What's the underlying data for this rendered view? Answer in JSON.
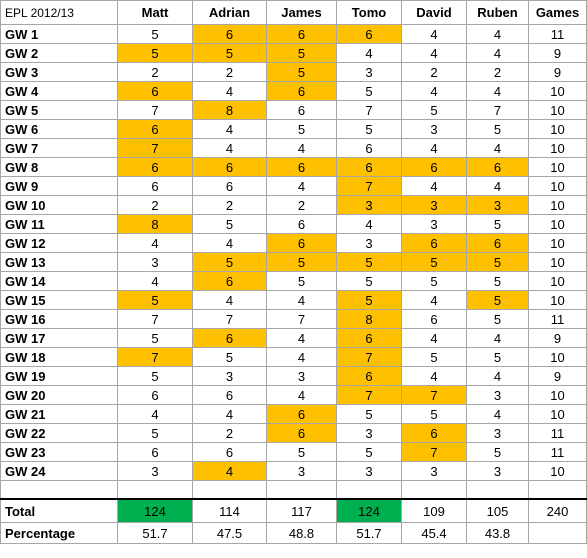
{
  "sheet": {
    "title": "EPL 2012/13",
    "columns": [
      "Matt",
      "Adrian",
      "James",
      "Tomo",
      "David",
      "Ruben",
      "Games"
    ],
    "rows": [
      {
        "label": "GW 1",
        "values": [
          "5",
          "6",
          "6",
          "6",
          "4",
          "4",
          "11"
        ],
        "highlight": [
          0,
          1,
          1,
          1,
          0,
          0,
          0
        ]
      },
      {
        "label": "GW 2",
        "values": [
          "5",
          "5",
          "5",
          "4",
          "4",
          "4",
          "9"
        ],
        "highlight": [
          1,
          1,
          1,
          0,
          0,
          0,
          0
        ]
      },
      {
        "label": "GW 3",
        "values": [
          "2",
          "2",
          "5",
          "3",
          "2",
          "2",
          "9"
        ],
        "highlight": [
          0,
          0,
          1,
          0,
          0,
          0,
          0
        ]
      },
      {
        "label": "GW 4",
        "values": [
          "6",
          "4",
          "6",
          "5",
          "4",
          "4",
          "10"
        ],
        "highlight": [
          1,
          0,
          1,
          0,
          0,
          0,
          0
        ]
      },
      {
        "label": "GW 5",
        "values": [
          "7",
          "8",
          "6",
          "7",
          "5",
          "7",
          "10"
        ],
        "highlight": [
          0,
          1,
          0,
          0,
          0,
          0,
          0
        ]
      },
      {
        "label": "GW 6",
        "values": [
          "6",
          "4",
          "5",
          "5",
          "3",
          "5",
          "10"
        ],
        "highlight": [
          1,
          0,
          0,
          0,
          0,
          0,
          0
        ]
      },
      {
        "label": "GW 7",
        "values": [
          "7",
          "4",
          "4",
          "6",
          "4",
          "4",
          "10"
        ],
        "highlight": [
          1,
          0,
          0,
          0,
          0,
          0,
          0
        ]
      },
      {
        "label": "GW 8",
        "values": [
          "6",
          "6",
          "6",
          "6",
          "6",
          "6",
          "10"
        ],
        "highlight": [
          1,
          1,
          1,
          1,
          1,
          1,
          0
        ]
      },
      {
        "label": "GW 9",
        "values": [
          "6",
          "6",
          "4",
          "7",
          "4",
          "4",
          "10"
        ],
        "highlight": [
          0,
          0,
          0,
          1,
          0,
          0,
          0
        ]
      },
      {
        "label": "GW 10",
        "values": [
          "2",
          "2",
          "2",
          "3",
          "3",
          "3",
          "10"
        ],
        "highlight": [
          0,
          0,
          0,
          1,
          1,
          1,
          0
        ]
      },
      {
        "label": "GW 11",
        "values": [
          "8",
          "5",
          "6",
          "4",
          "3",
          "5",
          "10"
        ],
        "highlight": [
          1,
          0,
          0,
          0,
          0,
          0,
          0
        ]
      },
      {
        "label": "GW 12",
        "values": [
          "4",
          "4",
          "6",
          "3",
          "6",
          "6",
          "10"
        ],
        "highlight": [
          0,
          0,
          1,
          0,
          1,
          1,
          0
        ]
      },
      {
        "label": "GW 13",
        "values": [
          "3",
          "5",
          "5",
          "5",
          "5",
          "5",
          "10"
        ],
        "highlight": [
          0,
          1,
          1,
          1,
          1,
          1,
          0
        ]
      },
      {
        "label": "GW 14",
        "values": [
          "4",
          "6",
          "5",
          "5",
          "5",
          "5",
          "10"
        ],
        "highlight": [
          0,
          1,
          0,
          0,
          0,
          0,
          0
        ]
      },
      {
        "label": "GW 15",
        "values": [
          "5",
          "4",
          "4",
          "5",
          "4",
          "5",
          "10"
        ],
        "highlight": [
          1,
          0,
          0,
          1,
          0,
          1,
          0
        ]
      },
      {
        "label": "GW 16",
        "values": [
          "7",
          "7",
          "7",
          "8",
          "6",
          "5",
          "11"
        ],
        "highlight": [
          0,
          0,
          0,
          1,
          0,
          0,
          0
        ]
      },
      {
        "label": "GW 17",
        "values": [
          "5",
          "6",
          "4",
          "6",
          "4",
          "4",
          "9"
        ],
        "highlight": [
          0,
          1,
          0,
          1,
          0,
          0,
          0
        ]
      },
      {
        "label": "GW 18",
        "values": [
          "7",
          "5",
          "4",
          "7",
          "5",
          "5",
          "10"
        ],
        "highlight": [
          1,
          0,
          0,
          1,
          0,
          0,
          0
        ]
      },
      {
        "label": "GW 19",
        "values": [
          "5",
          "3",
          "3",
          "6",
          "4",
          "4",
          "9"
        ],
        "highlight": [
          0,
          0,
          0,
          1,
          0,
          0,
          0
        ]
      },
      {
        "label": "GW 20",
        "values": [
          "6",
          "6",
          "4",
          "7",
          "7",
          "3",
          "10"
        ],
        "highlight": [
          0,
          0,
          0,
          1,
          1,
          0,
          0
        ]
      },
      {
        "label": "GW 21",
        "values": [
          "4",
          "4",
          "6",
          "5",
          "5",
          "4",
          "10"
        ],
        "highlight": [
          0,
          0,
          1,
          0,
          0,
          0,
          0
        ]
      },
      {
        "label": "GW 22",
        "values": [
          "5",
          "2",
          "6",
          "3",
          "6",
          "3",
          "11"
        ],
        "highlight": [
          0,
          0,
          1,
          0,
          1,
          0,
          0
        ]
      },
      {
        "label": "GW 23",
        "values": [
          "6",
          "6",
          "5",
          "5",
          "7",
          "5",
          "11"
        ],
        "highlight": [
          0,
          0,
          0,
          0,
          1,
          0,
          0
        ]
      },
      {
        "label": "GW 24",
        "values": [
          "3",
          "4",
          "3",
          "3",
          "3",
          "3",
          "10"
        ],
        "highlight": [
          0,
          1,
          0,
          0,
          0,
          0,
          0
        ]
      }
    ],
    "total": {
      "label": "Total",
      "values": [
        "124",
        "114",
        "117",
        "124",
        "109",
        "105",
        "240"
      ],
      "highlight": [
        1,
        0,
        0,
        1,
        0,
        0,
        0
      ]
    },
    "percentage": {
      "label": "Percentage",
      "values": [
        "51.7",
        "47.5",
        "48.8",
        "51.7",
        "45.4",
        "43.8",
        ""
      ]
    },
    "colors": {
      "highlight_yellow": "#ffc000",
      "highlight_green": "#00b050",
      "grid": "#a6a6a6"
    }
  }
}
